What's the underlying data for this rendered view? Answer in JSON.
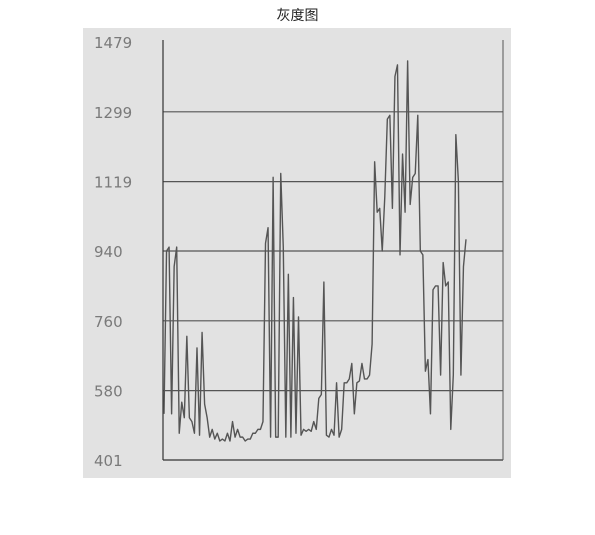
{
  "chart_data": {
    "type": "line",
    "title": "灰度图",
    "xlabel": "",
    "ylabel": "",
    "ylim": [
      401,
      1479
    ],
    "yticks": [
      "401",
      "580",
      "760",
      "940",
      "1119",
      "1299",
      "1479"
    ],
    "grid": "horizontal",
    "legend": "none",
    "colors": {
      "background": "#e2e2e2",
      "line": "#555555",
      "grid": "#555555",
      "axis": "#333333",
      "tick_text": "#7a7a7a"
    },
    "series": [
      {
        "values": [
          520,
          940,
          950,
          520,
          900,
          950,
          470,
          550,
          510,
          720,
          510,
          500,
          470,
          690,
          465,
          730,
          545,
          510,
          460,
          480,
          455,
          470,
          450,
          455,
          450,
          470,
          450,
          500,
          460,
          480,
          460,
          460,
          450,
          455,
          455,
          470,
          470,
          480,
          480,
          500,
          960,
          1000,
          460,
          1130,
          460,
          460,
          1140,
          950,
          460,
          880,
          460,
          820,
          470,
          770,
          465,
          480,
          475,
          480,
          475,
          500,
          480,
          560,
          570,
          860,
          465,
          460,
          480,
          465,
          600,
          460,
          480,
          600,
          600,
          610,
          650,
          520,
          600,
          605,
          650,
          610,
          610,
          620,
          700,
          1170,
          1040,
          1050,
          940,
          1080,
          1280,
          1290,
          1050,
          1390,
          1420,
          930,
          1190,
          1040,
          1430,
          1060,
          1130,
          1140,
          1290,
          940,
          930,
          630,
          660,
          520,
          840,
          850,
          850,
          620,
          910,
          850,
          860,
          480,
          620,
          1240,
          1120,
          620,
          900,
          970
        ]
      }
    ]
  }
}
